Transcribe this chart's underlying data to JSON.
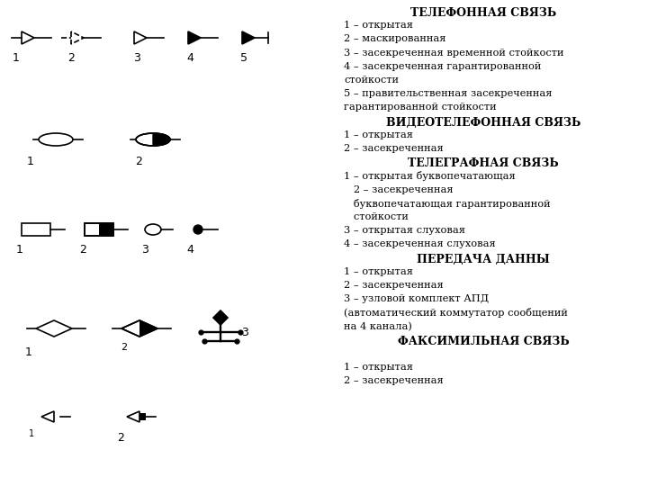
{
  "right_text": [
    {
      "text": "ТЕЛЕФОННАЯ СВЯЗЬ",
      "bold": true
    },
    {
      "text": "1 – открытая",
      "bold": false,
      "center": true
    },
    {
      "text": "2 – маскированная",
      "bold": false,
      "center": false
    },
    {
      "text": "3 – засекреченная временной стойкости",
      "bold": false,
      "center": false
    },
    {
      "text": "4 – засекреченная гарантированной",
      "bold": false,
      "center": false
    },
    {
      "text": "стойкости",
      "bold": false,
      "center": false
    },
    {
      "text": "5 – правительственная засекреченная",
      "bold": false,
      "center": false
    },
    {
      "text": "гарантированной стойкости",
      "bold": false,
      "center": false
    },
    {
      "text": "ВИДЕОТЕЛЕФОННАЯ СВЯЗЬ",
      "bold": true
    },
    {
      "text": "1 – открытая",
      "bold": false,
      "center": false
    },
    {
      "text": "2 – засекреченная",
      "bold": false,
      "center": false
    },
    {
      "text": "ТЕЛЕГРАФНАЯ СВЯЗЬ",
      "bold": true
    },
    {
      "text": "1 – открытая буквопечатающая",
      "bold": false,
      "center": false
    },
    {
      "text": "   2 – засекреченная",
      "bold": false,
      "center": false
    },
    {
      "text": "   буквопечатающая гарантированной",
      "bold": false,
      "center": false
    },
    {
      "text": "   стойкости",
      "bold": false,
      "center": false
    },
    {
      "text": "3 – открытая слуховая",
      "bold": false,
      "center": false
    },
    {
      "text": "4 – засекреченная слуховая",
      "bold": false,
      "center": false
    },
    {
      "text": "ПЕРЕДАЧА ДАННЫ",
      "bold": true
    },
    {
      "text": "1 – открытая",
      "bold": false,
      "center": false
    },
    {
      "text": "2 – засекреченная",
      "bold": false,
      "center": false
    },
    {
      "text": "3 – узловой комплект АПД",
      "bold": false,
      "center": false
    },
    {
      "text": "(автоматический коммутатор сообщений",
      "bold": false,
      "center": false
    },
    {
      "text": "на 4 канала)",
      "bold": false,
      "center": false
    },
    {
      "text": "ФАКСИМИЛЬНАЯ СВЯЗЬ",
      "bold": true
    },
    {
      "text": "",
      "bold": false,
      "center": false
    },
    {
      "text": "1 – открытая",
      "bold": false,
      "center": false
    },
    {
      "text": "2 – засекреченная",
      "bold": false,
      "center": false
    }
  ]
}
